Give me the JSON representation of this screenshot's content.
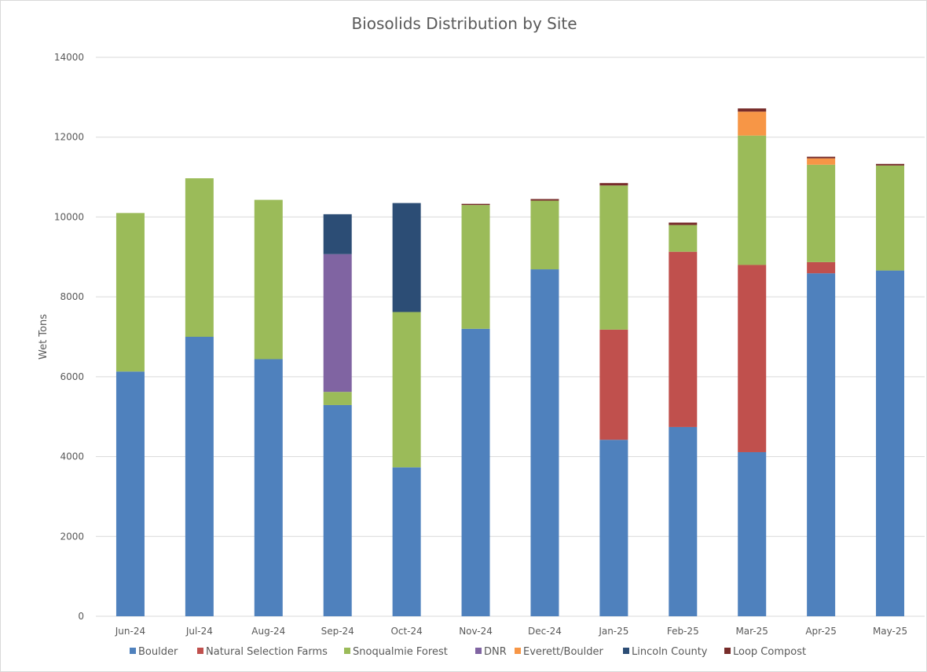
{
  "chart_data": {
    "type": "bar",
    "stacked": true,
    "title": "Biosolids Distribution by Site",
    "xlabel": "",
    "ylabel": "Wet Tons",
    "ylim": [
      0,
      14000
    ],
    "yticks": [
      0,
      2000,
      4000,
      6000,
      8000,
      10000,
      12000,
      14000
    ],
    "grid": true,
    "legend_position": "bottom",
    "categories": [
      "Jun-24",
      "Jul-24",
      "Aug-24",
      "Sep-24",
      "Oct-24",
      "Nov-24",
      "Dec-24",
      "Jan-25",
      "Feb-25",
      "Mar-25",
      "Apr-25",
      "May-25"
    ],
    "series": [
      {
        "name": "Boulder",
        "color": "#4f81bd",
        "values": [
          6130,
          7000,
          6440,
          5290,
          3730,
          7200,
          8690,
          4420,
          4740,
          4110,
          8590,
          8660
        ]
      },
      {
        "name": "Natural Selection Farms",
        "color": "#c0504d",
        "values": [
          0,
          0,
          0,
          0,
          0,
          0,
          0,
          2760,
          4390,
          4690,
          280,
          0
        ]
      },
      {
        "name": "Snoqualmie Forest",
        "color": "#9bbb59",
        "values": [
          3970,
          3970,
          3990,
          330,
          3890,
          3100,
          1720,
          3610,
          670,
          3240,
          2440,
          2630
        ]
      },
      {
        "name": "DNR",
        "color": "#8064a2",
        "values": [
          0,
          0,
          0,
          3450,
          0,
          0,
          0,
          0,
          0,
          0,
          0,
          0
        ]
      },
      {
        "name": "Everett/Boulder",
        "color": "#f79646",
        "values": [
          0,
          0,
          0,
          0,
          0,
          0,
          0,
          0,
          0,
          600,
          160,
          0
        ]
      },
      {
        "name": "Lincoln County",
        "color": "#2c4d75",
        "values": [
          0,
          0,
          0,
          1000,
          2730,
          0,
          0,
          0,
          0,
          0,
          0,
          0
        ]
      },
      {
        "name": "Loop Compost",
        "color": "#772c2a",
        "values": [
          0,
          0,
          0,
          0,
          0,
          30,
          40,
          60,
          60,
          80,
          40,
          40
        ]
      }
    ]
  }
}
